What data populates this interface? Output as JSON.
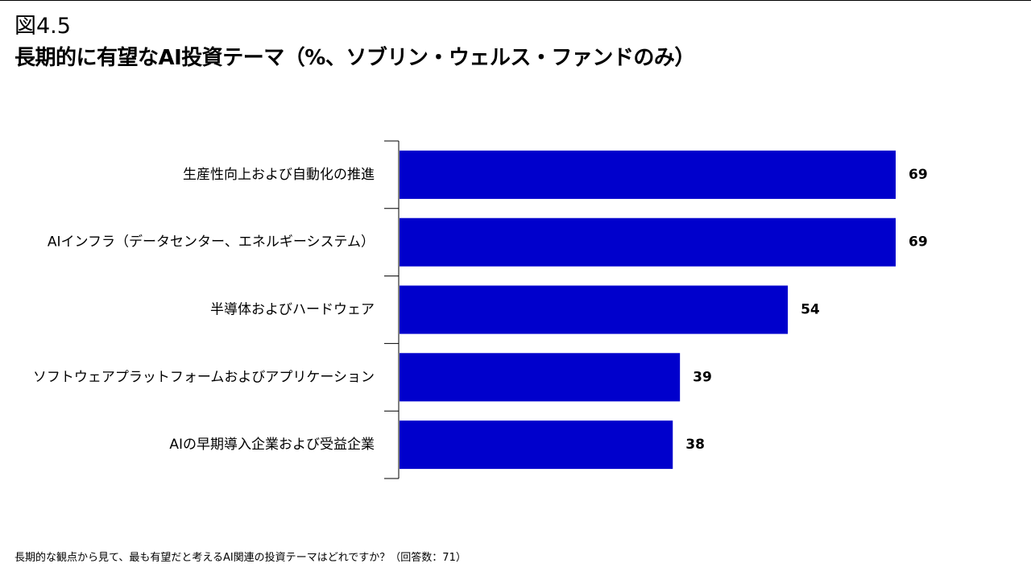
{
  "header": {
    "figure_label": "図4.5",
    "title": "長期的に有望なAI投資テーマ（%、ソブリン・ウェルス・ファンドのみ）"
  },
  "footnote": "長期的な観点から見て、最も有望だと考えるAI関連の投資テーマはどれですか？（回答数：71）",
  "colors": {
    "bar": "#0000cc",
    "axis": "#000000"
  },
  "chart_data": {
    "type": "bar",
    "orientation": "horizontal",
    "categories": [
      "生産性向上および自動化の推進",
      "AIインフラ（データセンター、エネルギーシステム）",
      "半導体およびハードウェア",
      "ソフトウェアプラットフォームおよびアプリケーション",
      "AIの早期導入企業および受益企業"
    ],
    "values": [
      69,
      69,
      54,
      39,
      38
    ],
    "value_labels": [
      "69",
      "69",
      "54",
      "39",
      "38"
    ],
    "title": "長期的に有望なAI投資テーマ（%、ソブリン・ウェルス・ファンドのみ）",
    "xlabel": "",
    "ylabel": "",
    "xlim": [
      0,
      69
    ],
    "grid": false,
    "legend": "none"
  }
}
